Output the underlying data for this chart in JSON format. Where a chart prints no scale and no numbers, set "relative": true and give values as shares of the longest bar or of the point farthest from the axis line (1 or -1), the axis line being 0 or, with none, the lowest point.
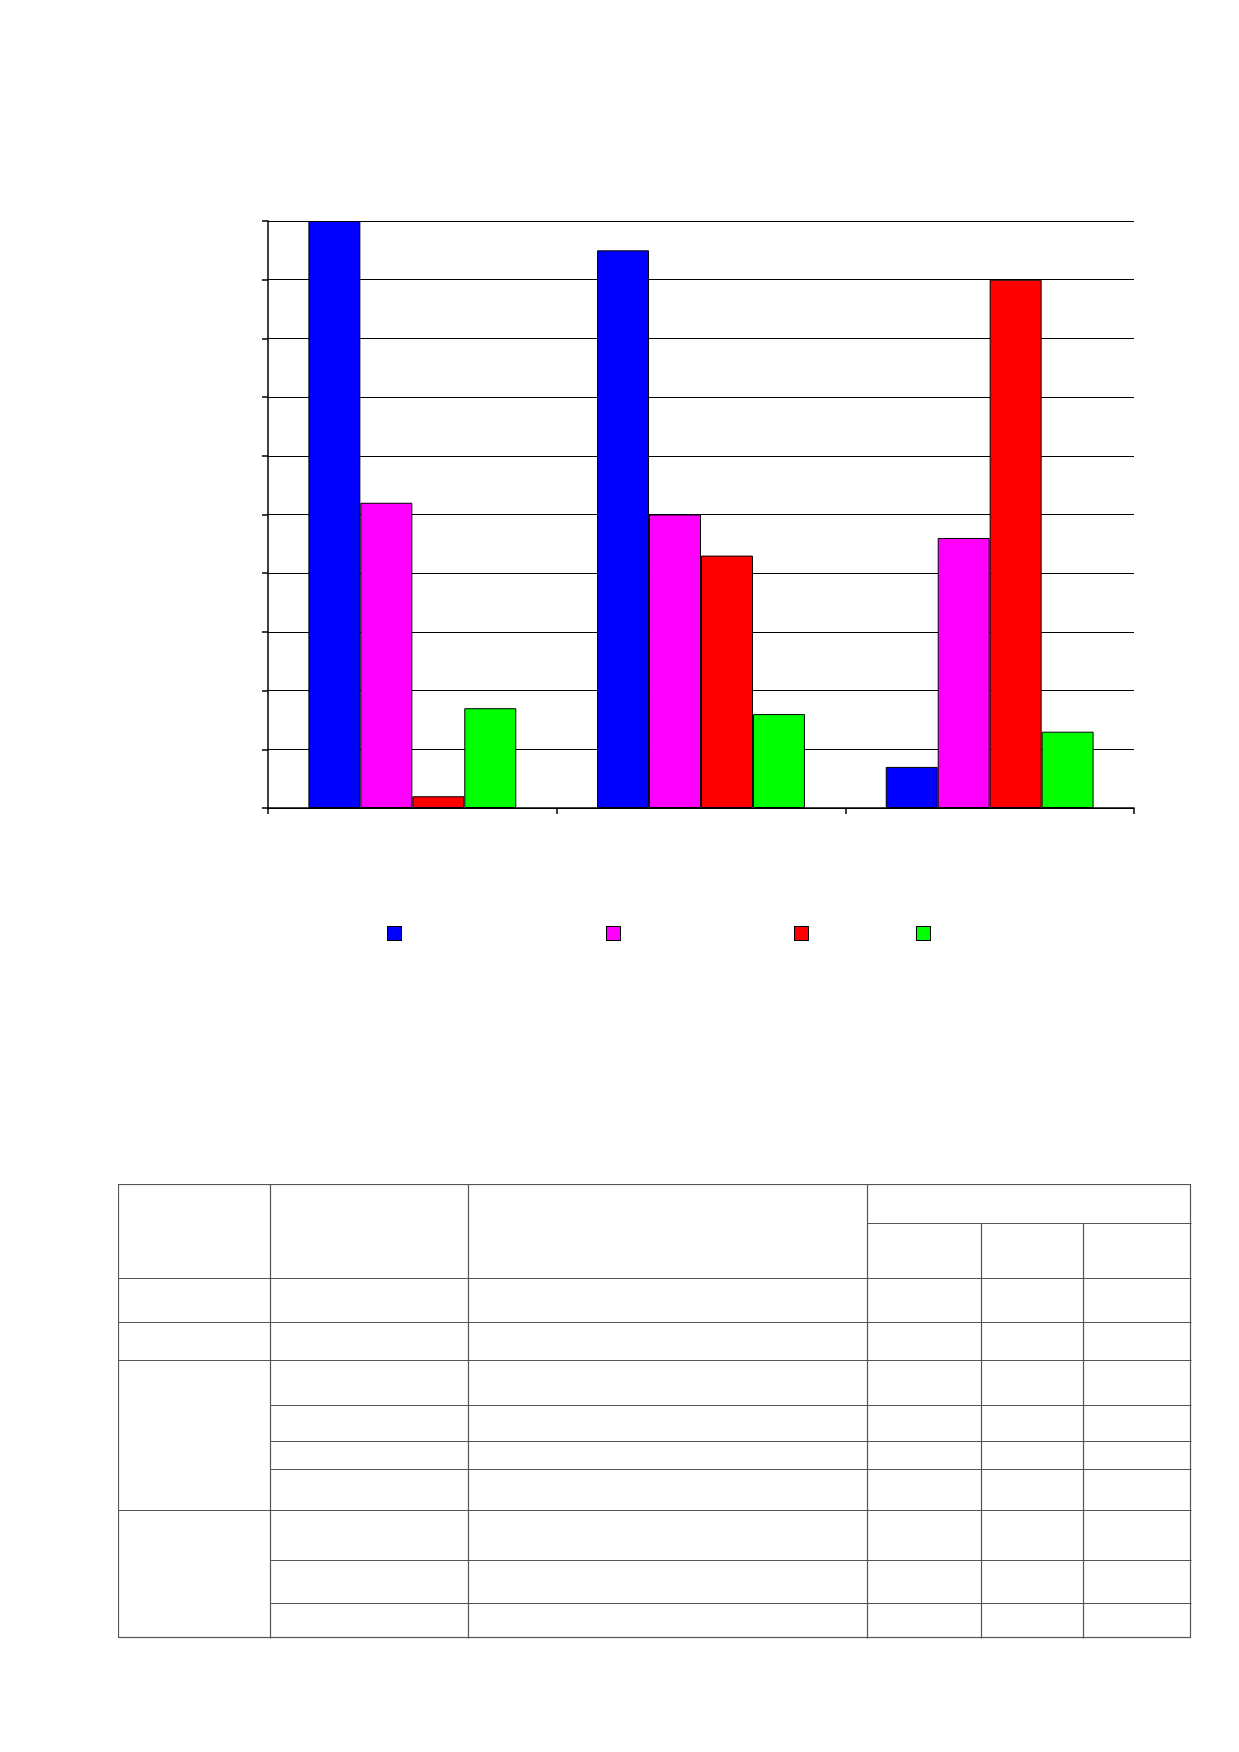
{
  "chart_data": {
    "type": "bar",
    "relative": true,
    "categories": [
      null,
      null,
      null
    ],
    "series": [
      {
        "color": "#0000ff",
        "values": [
          1,
          0.95,
          0.07
        ]
      },
      {
        "color": "#ff00ff",
        "values": [
          0.52,
          0.5,
          0.46
        ]
      },
      {
        "color": "#ff0000",
        "values": [
          0.02,
          0.43,
          0.9
        ]
      },
      {
        "color": "#00ff00",
        "values": [
          0.17,
          0.16,
          0.13
        ]
      }
    ],
    "grid": "y"
  }
}
